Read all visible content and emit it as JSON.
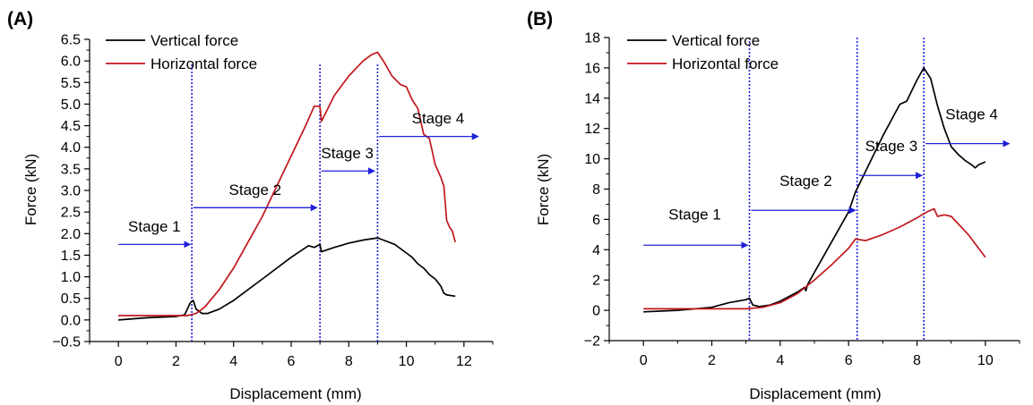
{
  "chart_data": [
    {
      "type": "line",
      "panel_label": "(A)",
      "xlabel": "Displacement (mm)",
      "ylabel": "Force (kN)",
      "xlim": [
        -1,
        13
      ],
      "ylim": [
        -0.5,
        6.5
      ],
      "xticks": [
        0,
        2,
        4,
        6,
        8,
        10,
        12
      ],
      "xtick_labels": [
        "0",
        "2",
        "4",
        "6",
        "8",
        "10",
        "12"
      ],
      "yticks": [
        -0.5,
        0,
        0.5,
        1,
        1.5,
        2,
        2.5,
        3,
        3.5,
        4,
        4.5,
        5,
        5.5,
        6,
        6.5
      ],
      "ytick_labels": [
        "−0.5",
        "0.0",
        "0.5",
        "1.0",
        "1.5",
        "2.0",
        "2.5",
        "3.0",
        "3.5",
        "4.0",
        "4.5",
        "5.0",
        "5.5",
        "6.0",
        "6.5"
      ],
      "grid": false,
      "legend_position": "top-left",
      "series": [
        {
          "name": "Vertical force",
          "color": "#000000",
          "points": [
            [
              0,
              0
            ],
            [
              1,
              0.05
            ],
            [
              2,
              0.08
            ],
            [
              2.3,
              0.12
            ],
            [
              2.5,
              0.4
            ],
            [
              2.6,
              0.45
            ],
            [
              2.7,
              0.25
            ],
            [
              2.9,
              0.15
            ],
            [
              3.1,
              0.15
            ],
            [
              3.5,
              0.25
            ],
            [
              4,
              0.45
            ],
            [
              5,
              0.95
            ],
            [
              6,
              1.45
            ],
            [
              6.6,
              1.72
            ],
            [
              6.8,
              1.68
            ],
            [
              7,
              1.75
            ],
            [
              7.05,
              1.58
            ],
            [
              7.5,
              1.68
            ],
            [
              8,
              1.78
            ],
            [
              8.5,
              1.85
            ],
            [
              9,
              1.9
            ],
            [
              9.2,
              1.85
            ],
            [
              9.6,
              1.75
            ],
            [
              10,
              1.55
            ],
            [
              10.2,
              1.45
            ],
            [
              10.4,
              1.3
            ],
            [
              10.5,
              1.25
            ],
            [
              10.6,
              1.2
            ],
            [
              10.8,
              1.05
            ],
            [
              11,
              0.95
            ],
            [
              11.2,
              0.78
            ],
            [
              11.3,
              0.62
            ],
            [
              11.4,
              0.58
            ],
            [
              11.7,
              0.55
            ]
          ]
        },
        {
          "name": "Horizontal force",
          "color": "#c0171c",
          "points": [
            [
              0,
              0.1
            ],
            [
              1,
              0.1
            ],
            [
              2.4,
              0.1
            ],
            [
              2.7,
              0.15
            ],
            [
              3,
              0.3
            ],
            [
              3.5,
              0.7
            ],
            [
              4,
              1.2
            ],
            [
              4.5,
              1.8
            ],
            [
              5,
              2.4
            ],
            [
              5.5,
              3.1
            ],
            [
              6,
              3.8
            ],
            [
              6.5,
              4.5
            ],
            [
              6.7,
              4.8
            ],
            [
              6.8,
              4.95
            ],
            [
              7,
              4.95
            ],
            [
              7.05,
              4.6
            ],
            [
              7.2,
              4.8
            ],
            [
              7.5,
              5.2
            ],
            [
              8,
              5.65
            ],
            [
              8.5,
              6.0
            ],
            [
              8.8,
              6.15
            ],
            [
              9,
              6.2
            ],
            [
              9.2,
              6.0
            ],
            [
              9.5,
              5.65
            ],
            [
              9.8,
              5.45
            ],
            [
              10,
              5.4
            ],
            [
              10.2,
              5.1
            ],
            [
              10.4,
              4.9
            ],
            [
              10.5,
              4.6
            ],
            [
              10.6,
              4.3
            ],
            [
              10.8,
              4.2
            ],
            [
              10.9,
              3.9
            ],
            [
              11,
              3.6
            ],
            [
              11.2,
              3.3
            ],
            [
              11.3,
              3.1
            ],
            [
              11.35,
              2.7
            ],
            [
              11.4,
              2.3
            ],
            [
              11.5,
              2.15
            ],
            [
              11.6,
              2.05
            ],
            [
              11.7,
              1.8
            ]
          ]
        }
      ],
      "stage_lines": [
        2.55,
        7.0,
        9.0
      ],
      "stages": [
        {
          "label": "Stage 1",
          "x_from": 0,
          "x_to": 2.5,
          "y": 1.75,
          "label_x": 1.25,
          "label_y": 2.05
        },
        {
          "label": "Stage 2",
          "x_from": 2.6,
          "x_to": 6.9,
          "y": 2.6,
          "label_x": 4.75,
          "label_y": 2.9
        },
        {
          "label": "Stage 3",
          "x_from": 7.05,
          "x_to": 8.9,
          "y": 3.45,
          "label_x": 7.95,
          "label_y": 3.75
        },
        {
          "label": "Stage 4",
          "x_from": 9.05,
          "x_to": 12.5,
          "y": 4.25,
          "label_x": 11.1,
          "label_y": 4.55
        }
      ]
    },
    {
      "type": "line",
      "panel_label": "(B)",
      "xlabel": "Displacement (mm)",
      "ylabel": "Force (kN)",
      "xlim": [
        -1,
        11
      ],
      "ylim": [
        -2,
        18
      ],
      "xticks": [
        0,
        2,
        4,
        6,
        8,
        10
      ],
      "xtick_labels": [
        "0",
        "2",
        "4",
        "6",
        "8",
        "10"
      ],
      "yticks": [
        -2,
        0,
        2,
        4,
        6,
        8,
        10,
        12,
        14,
        16,
        18
      ],
      "ytick_labels": [
        "−2",
        "0",
        "2",
        "4",
        "6",
        "8",
        "10",
        "12",
        "14",
        "16",
        "18"
      ],
      "grid": false,
      "legend_position": "top-left",
      "series": [
        {
          "name": "Vertical force",
          "color": "#000000",
          "points": [
            [
              0,
              -0.1
            ],
            [
              1,
              0
            ],
            [
              2,
              0.2
            ],
            [
              2.5,
              0.5
            ],
            [
              3,
              0.7
            ],
            [
              3.1,
              0.8
            ],
            [
              3.2,
              0.35
            ],
            [
              3.4,
              0.25
            ],
            [
              3.7,
              0.35
            ],
            [
              4,
              0.6
            ],
            [
              4.5,
              1.2
            ],
            [
              4.7,
              1.5
            ],
            [
              4.75,
              1.3
            ],
            [
              4.8,
              1.7
            ],
            [
              5,
              2.5
            ],
            [
              5.5,
              4.5
            ],
            [
              6,
              6.5
            ],
            [
              6.2,
              7.8
            ],
            [
              6.5,
              9.2
            ],
            [
              7,
              11.5
            ],
            [
              7.5,
              13.6
            ],
            [
              7.7,
              13.8
            ],
            [
              8,
              15.2
            ],
            [
              8.2,
              16.0
            ],
            [
              8.4,
              15.3
            ],
            [
              8.6,
              13.5
            ],
            [
              8.8,
              12.0
            ],
            [
              9,
              10.8
            ],
            [
              9.2,
              10.3
            ],
            [
              9.4,
              9.9
            ],
            [
              9.6,
              9.6
            ],
            [
              9.7,
              9.4
            ],
            [
              9.8,
              9.6
            ],
            [
              10,
              9.8
            ]
          ]
        },
        {
          "name": "Horizontal force",
          "color": "#c0171c",
          "points": [
            [
              0,
              0.1
            ],
            [
              1,
              0.1
            ],
            [
              2,
              0.1
            ],
            [
              3,
              0.1
            ],
            [
              3.5,
              0.2
            ],
            [
              4,
              0.5
            ],
            [
              4.5,
              1.1
            ],
            [
              5,
              2.0
            ],
            [
              5.5,
              3.0
            ],
            [
              6,
              4.1
            ],
            [
              6.2,
              4.7
            ],
            [
              6.5,
              4.6
            ],
            [
              7,
              5.0
            ],
            [
              7.5,
              5.5
            ],
            [
              8,
              6.1
            ],
            [
              8.3,
              6.5
            ],
            [
              8.5,
              6.7
            ],
            [
              8.6,
              6.2
            ],
            [
              8.8,
              6.3
            ],
            [
              9,
              6.2
            ],
            [
              9.5,
              5.0
            ],
            [
              10,
              3.5
            ]
          ]
        }
      ],
      "stage_lines": [
        3.1,
        6.25,
        8.2
      ],
      "stages": [
        {
          "label": "Stage 1",
          "x_from": 0,
          "x_to": 3.05,
          "y": 4.3,
          "label_x": 1.5,
          "label_y": 6.0
        },
        {
          "label": "Stage 2",
          "x_from": 3.15,
          "x_to": 6.2,
          "y": 6.6,
          "label_x": 4.75,
          "label_y": 8.2
        },
        {
          "label": "Stage 3",
          "x_from": 6.3,
          "x_to": 8.15,
          "y": 8.9,
          "label_x": 7.25,
          "label_y": 10.5
        },
        {
          "label": "Stage 4",
          "x_from": 8.25,
          "x_to": 10.7,
          "y": 11.0,
          "label_x": 9.6,
          "label_y": 12.6
        }
      ]
    }
  ]
}
